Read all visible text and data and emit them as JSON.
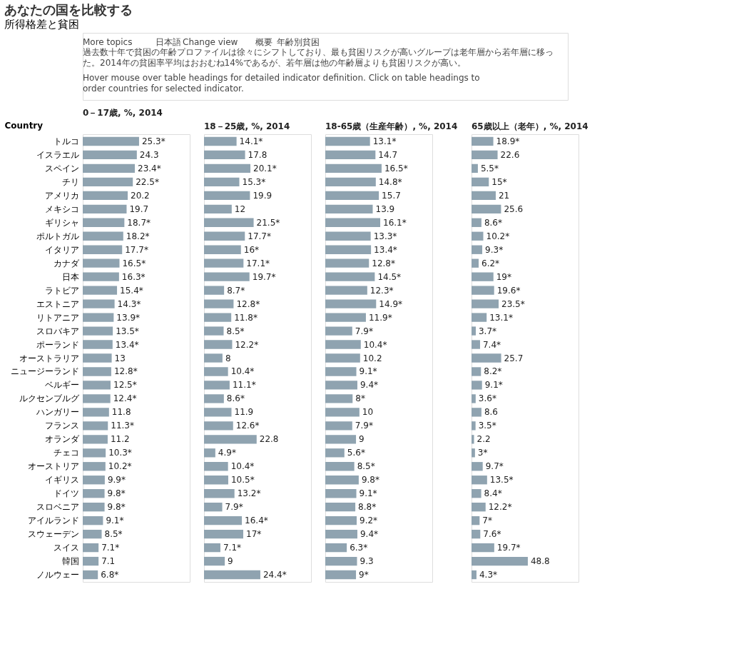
{
  "chart_data": [
    {
      "type": "bar",
      "orientation": "horizontal",
      "title": "あなたの国を比較する",
      "subtitle": "所得格差と貧困",
      "ylabel": "Country",
      "tick_labels": "y",
      "annotations": [
        "More topics",
        "日本語",
        "Change view",
        "概要",
        "年齢別貧困",
        "過去数十年で貧困の年齢プロファイルは徐々にシフトしており、最も貧困リスクが高いグループは老年層から若年層に移った。2014年の貧困率平均はおおむね14%であるが、若年層は他の年齢層よりも貧困リスクが高い。",
        "Hover mouse over table headings for detailed indicator definition. Click on table headings to order countries for selected indicator."
      ],
      "series": [
        {
          "name": "0－17歳, %, 2014",
          "color": "#8fa3b0",
          "values": [
            25.3,
            24.3,
            23.4,
            22.5,
            20.2,
            19.7,
            18.7,
            18.2,
            17.7,
            16.5,
            16.3,
            15.4,
            14.3,
            13.9,
            13.5,
            13.4,
            13,
            12.8,
            12.5,
            12.4,
            11.8,
            11.3,
            11.2,
            10.3,
            10.2,
            9.9,
            9.8,
            9.8,
            9.1,
            8.5,
            7.1,
            7.1,
            6.8
          ],
          "value_labels": [
            "25.3*",
            "24.3",
            "23.4*",
            "22.5*",
            "20.2",
            "19.7",
            "18.7*",
            "18.2*",
            "17.7*",
            "16.5*",
            "16.3*",
            "15.4*",
            "14.3*",
            "13.9*",
            "13.5*",
            "13.4*",
            "13",
            "12.8*",
            "12.5*",
            "12.4*",
            "11.8",
            "11.3*",
            "11.2",
            "10.3*",
            "10.2*",
            "9.9*",
            "9.8*",
            "9.8*",
            "9.1*",
            "8.5*",
            "7.1*",
            "7.1",
            "6.8*"
          ]
        }
      ],
      "categories": [
        "トルコ",
        "イスラエル",
        "スペイン",
        "チリ",
        "アメリカ",
        "メキシコ",
        "ギリシャ",
        "ポルトガル",
        "イタリア",
        "カナダ",
        "日本",
        "ラトビア",
        "エストニア",
        "リトアニア",
        "スロバキア",
        "ポーランド",
        "オーストラリア",
        "ニュージーランド",
        "ベルギー",
        "ルクセンブルグ",
        "ハンガリー",
        "フランス",
        "オランダ",
        "チェコ",
        "オーストリア",
        "イギリス",
        "ドイツ",
        "スロベニア",
        "アイルランド",
        "スウェーデン",
        "スイス",
        "韓国",
        "ノルウェー"
      ]
    },
    {
      "type": "bar",
      "orientation": "horizontal",
      "tick_labels": false,
      "series": [
        {
          "name": "18－25歳, %, 2014",
          "color": "#8fa3b0",
          "values": [
            14.1,
            17.8,
            20.1,
            15.3,
            19.9,
            12,
            21.5,
            17.7,
            16,
            17.1,
            19.7,
            8.7,
            12.8,
            11.8,
            8.5,
            12.2,
            8,
            10.4,
            11.1,
            8.6,
            11.9,
            12.6,
            22.8,
            4.9,
            10.4,
            10.5,
            13.2,
            7.9,
            16.4,
            17,
            7.1,
            9,
            24.4
          ],
          "value_labels": [
            "14.1*",
            "17.8",
            "20.1*",
            "15.3*",
            "19.9",
            "12",
            "21.5*",
            "17.7*",
            "16*",
            "17.1*",
            "19.7*",
            "8.7*",
            "12.8*",
            "11.8*",
            "8.5*",
            "12.2*",
            "8",
            "10.4*",
            "11.1*",
            "8.6*",
            "11.9",
            "12.6*",
            "22.8",
            "4.9*",
            "10.4*",
            "10.5*",
            "13.2*",
            "7.9*",
            "16.4*",
            "17*",
            "7.1*",
            "9",
            "24.4*"
          ]
        }
      ],
      "categories": [
        null,
        null,
        null,
        null,
        null,
        null,
        null,
        null,
        null,
        null,
        null,
        null,
        null,
        null,
        null,
        null,
        null,
        null,
        null,
        null,
        null,
        null,
        null,
        null,
        null,
        null,
        null,
        null,
        null,
        null,
        null,
        null,
        null
      ]
    },
    {
      "type": "bar",
      "orientation": "horizontal",
      "tick_labels": false,
      "series": [
        {
          "name": "18-65歳（生産年齢）, %, 2014",
          "color": "#8fa3b0",
          "values": [
            13.1,
            14.7,
            16.5,
            14.8,
            15.7,
            13.9,
            16.1,
            13.3,
            13.4,
            12.8,
            14.5,
            12.3,
            14.9,
            11.9,
            7.9,
            10.4,
            10.2,
            9.1,
            9.4,
            8,
            10,
            7.9,
            9,
            5.6,
            8.5,
            9.8,
            9.1,
            8.8,
            9.2,
            9.4,
            6.3,
            9.3,
            9
          ],
          "value_labels": [
            "13.1*",
            "14.7",
            "16.5*",
            "14.8*",
            "15.7",
            "13.9",
            "16.1*",
            "13.3*",
            "13.4*",
            "12.8*",
            "14.5*",
            "12.3*",
            "14.9*",
            "11.9*",
            "7.9*",
            "10.4*",
            "10.2",
            "9.1*",
            "9.4*",
            "8*",
            "10",
            "7.9*",
            "9",
            "5.6*",
            "8.5*",
            "9.8*",
            "9.1*",
            "8.8*",
            "9.2*",
            "9.4*",
            "6.3*",
            "9.3",
            "9*"
          ]
        }
      ],
      "categories": [
        null,
        null,
        null,
        null,
        null,
        null,
        null,
        null,
        null,
        null,
        null,
        null,
        null,
        null,
        null,
        null,
        null,
        null,
        null,
        null,
        null,
        null,
        null,
        null,
        null,
        null,
        null,
        null,
        null,
        null,
        null,
        null,
        null
      ]
    },
    {
      "type": "bar",
      "orientation": "horizontal",
      "tick_labels": false,
      "series": [
        {
          "name": "65歳以上（老年）, %, 2014",
          "color": "#8fa3b0",
          "values": [
            18.9,
            22.6,
            5.5,
            15,
            21,
            25.6,
            8.6,
            10.2,
            9.3,
            6.2,
            19,
            19.6,
            23.5,
            13.1,
            3.7,
            7.4,
            25.7,
            8.2,
            9.1,
            3.6,
            8.6,
            3.5,
            2.2,
            3,
            9.7,
            13.5,
            8.4,
            12.2,
            7,
            7.6,
            19.7,
            48.8,
            4.3
          ],
          "value_labels": [
            "18.9*",
            "22.6",
            "5.5*",
            "15*",
            "21",
            "25.6",
            "8.6*",
            "10.2*",
            "9.3*",
            "6.2*",
            "19*",
            "19.6*",
            "23.5*",
            "13.1*",
            "3.7*",
            "7.4*",
            "25.7",
            "8.2*",
            "9.1*",
            "3.6*",
            "8.6",
            "3.5*",
            "2.2",
            "3*",
            "9.7*",
            "13.5*",
            "8.4*",
            "12.2*",
            "7*",
            "7.6*",
            "19.7*",
            "48.8",
            "4.3*"
          ]
        }
      ],
      "categories": [
        null,
        null,
        null,
        null,
        null,
        null,
        null,
        null,
        null,
        null,
        null,
        null,
        null,
        null,
        null,
        null,
        null,
        null,
        null,
        null,
        null,
        null,
        null,
        null,
        null,
        null,
        null,
        null,
        null,
        null,
        null,
        null,
        null
      ]
    }
  ]
}
